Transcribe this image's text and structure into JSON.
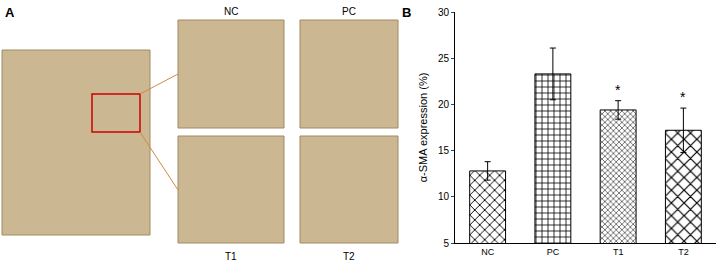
{
  "panel_a": {
    "label": "A",
    "image_labels": [
      "NC",
      "PC",
      "T1",
      "T2"
    ]
  },
  "chart_data": {
    "label": "B",
    "type": "bar",
    "categories": [
      "NC",
      "PC",
      "T1",
      "T2"
    ],
    "values": [
      12.8,
      23.3,
      19.4,
      17.2
    ],
    "errors": [
      1.0,
      2.8,
      1.0,
      2.4
    ],
    "color": "#ffffff",
    "y_label": "α-SMA expression (%)",
    "ylim": [
      5,
      30
    ],
    "yticks": [
      5,
      10,
      15,
      20,
      25,
      30
    ],
    "grid": false,
    "annotations": [
      {
        "category": "T1",
        "text": "*"
      },
      {
        "category": "T2",
        "text": "*"
      }
    ]
  }
}
